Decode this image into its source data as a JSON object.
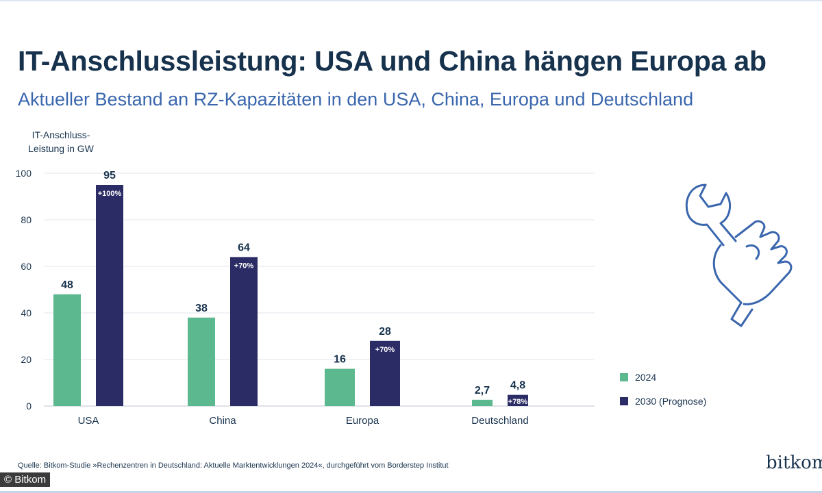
{
  "header": {
    "title": "IT-Anschlussleistung: USA und China hängen Europa ab",
    "subtitle": "Aktueller Bestand an RZ-Kapazitäten in den USA, China, Europa und Deutschland"
  },
  "chart_data": {
    "type": "bar",
    "ylabel_lines": [
      "IT-Anschluss-",
      "Leistung in GW"
    ],
    "ylim": [
      0,
      100
    ],
    "yticks": [
      0,
      20,
      40,
      60,
      80,
      100
    ],
    "grid": true,
    "legend_position": "right",
    "categories": [
      "USA",
      "China",
      "Europa",
      "Deutschland"
    ],
    "series": [
      {
        "name": "2024",
        "color": "#5cb88f",
        "values": [
          48,
          38,
          16,
          2.7
        ],
        "labels": [
          "48",
          "38",
          "16",
          "2,7"
        ]
      },
      {
        "name": "2030 (Prognose)",
        "color": "#2b2c65",
        "values": [
          95,
          64,
          28,
          4.8
        ],
        "labels": [
          "95",
          "64",
          "28",
          "4,8"
        ],
        "growth": [
          "+100%",
          "+70%",
          "+70%",
          "+78%"
        ]
      }
    ]
  },
  "footer": {
    "source": "Quelle: Bitkom-Studie »Rechenzentren in Deutschland: Aktuelle Marktentwicklungen 2024«, durchgeführt vom Borderstep Institut",
    "logo_text": "bitkom",
    "copyright": "© Bitkom"
  },
  "illustration": {
    "icon": "hand-wrench-icon",
    "color": "#3a66ad"
  }
}
